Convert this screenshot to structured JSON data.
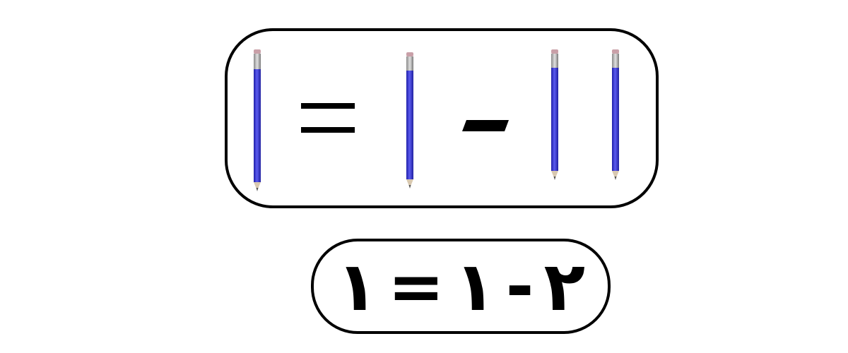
{
  "pencil_equation": {
    "pencil_color": "#3333cc",
    "terms": [
      "pencil-1",
      "equals",
      "pencil-2",
      "minus",
      "pencil-3",
      "pencil-4"
    ]
  },
  "number_equation": {
    "tokens": [
      "١",
      "=",
      "١",
      "-",
      "٢"
    ]
  }
}
